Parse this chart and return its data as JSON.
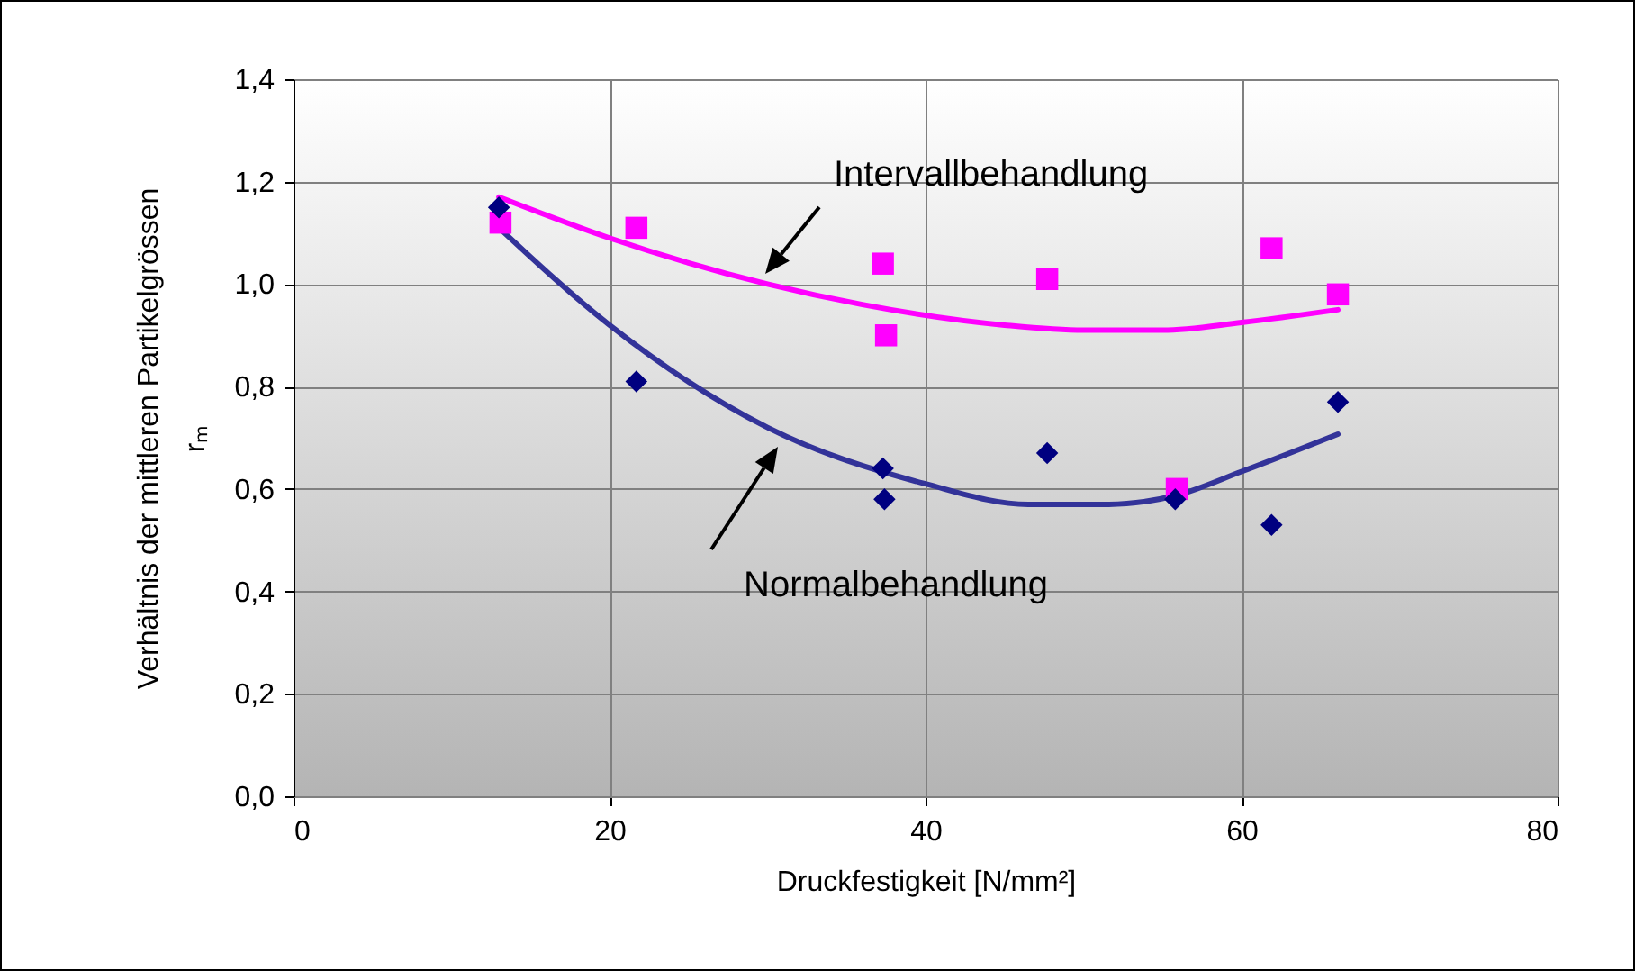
{
  "chart_data": {
    "type": "scatter",
    "xlabel": "Druckfestigkeit [N/mm²]",
    "ylabel": "Verhältnis der mittleren Partikelgrössen\nrₘ",
    "xlim": [
      0,
      80
    ],
    "xticks": [
      0,
      20,
      40,
      60,
      80
    ],
    "ylim": [
      0,
      1.4
    ],
    "yticks": [
      {
        "value": 0,
        "label": "0,0"
      },
      {
        "value": 0.2,
        "label": "0,2"
      },
      {
        "value": 0.4,
        "label": "0,4"
      },
      {
        "value": 0.6,
        "label": "0,6"
      },
      {
        "value": 0.8,
        "label": "0,8"
      },
      {
        "value": 1.0,
        "label": "1,0"
      },
      {
        "value": 1.2,
        "label": "1,2"
      },
      {
        "value": 1.4,
        "label": "1,4"
      }
    ],
    "grid": true,
    "series": [
      {
        "type": "line",
        "color": "#ff00ff",
        "marker": "none",
        "x": [
          13,
          20,
          30,
          36,
          45,
          50,
          55,
          60,
          66.1
        ],
        "values": [
          1.17,
          1.09,
          1.0,
          0.96,
          0.92,
          0.91,
          0.91,
          0.925,
          0.95
        ]
      },
      {
        "type": "line",
        "color": "#333399",
        "marker": "none",
        "x": [
          13,
          20,
          30,
          40,
          46.5,
          51.6,
          55.8,
          60,
          66.1
        ],
        "values": [
          1.11,
          0.92,
          0.72,
          0.61,
          0.57,
          0.57,
          0.587,
          0.634,
          0.707
        ]
      },
      {
        "color": "#ff00ff",
        "marker": "square",
        "x": [
          13.1,
          21.7,
          37.3,
          37.5,
          47.7,
          55.9,
          61.9,
          66.1
        ],
        "values": [
          1.12,
          1.11,
          1.04,
          0.9,
          1.01,
          0.6,
          1.07,
          0.98
        ]
      },
      {
        "color": "#000080",
        "marker": "diamond",
        "x": [
          13,
          21.7,
          37.3,
          37.4,
          47.7,
          55.8,
          61.9,
          66.1
        ],
        "values": [
          1.15,
          0.81,
          0.64,
          0.58,
          0.67,
          0.58,
          0.53,
          0.77
        ]
      }
    ],
    "annotations": [
      "Intervallbehandlung",
      "Normalbehandlung"
    ]
  }
}
